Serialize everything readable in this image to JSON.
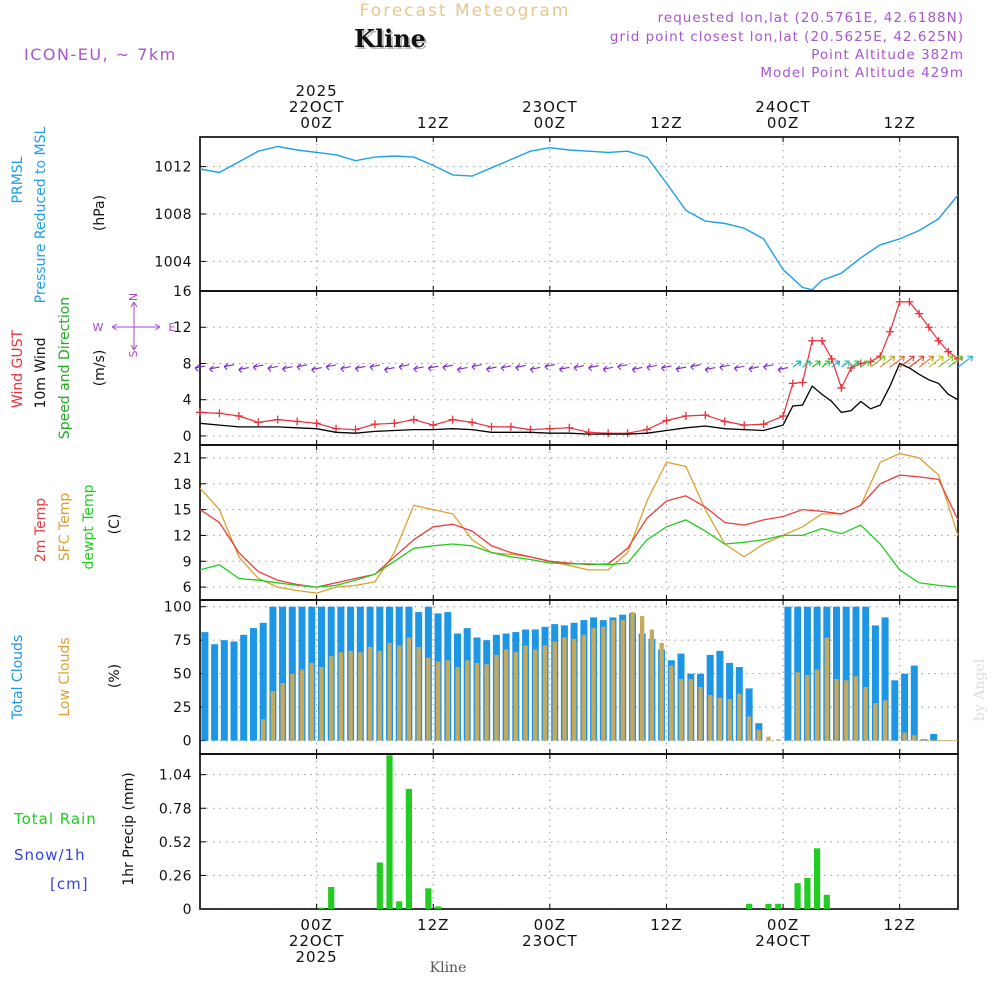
{
  "header": {
    "title": "Forecast Meteogram",
    "location": "Kline",
    "model": "ICON-EU, ~ 7km",
    "requested": "requested lon,lat (20.5761E, 42.6188N)",
    "grid": "grid point closest lon,lat (20.5625E, 42.625N)",
    "point_altitude": "Point Altitude 382m",
    "model_altitude": "Model Point Altitude 429m",
    "credit": "by Angel",
    "footer_location": "Kline"
  },
  "colors": {
    "pressure": "#1ea0e6",
    "gust": "#e8303a",
    "wind": "#000000",
    "wind_dir": "#22aa22",
    "compass": "#aa44cc",
    "temp2m": "#e84040",
    "sfc": "#dca030",
    "dewpt": "#22cc22",
    "clouds_total": "#1e96e6",
    "clouds_low": "#c8a85a",
    "rain": "#22cc22",
    "snow": "#3344dd",
    "header_purple": "#a855d0",
    "title_gold": "#e6c88c"
  },
  "time_axis": {
    "hours": 78,
    "top_labels": [
      {
        "hour": 12,
        "lines": [
          "2025",
          "22OCT",
          "00Z"
        ]
      },
      {
        "hour": 24,
        "lines": [
          "12Z"
        ]
      },
      {
        "hour": 36,
        "lines": [
          "23OCT",
          "00Z"
        ]
      },
      {
        "hour": 48,
        "lines": [
          "12Z"
        ]
      },
      {
        "hour": 60,
        "lines": [
          "24OCT",
          "00Z"
        ]
      },
      {
        "hour": 72,
        "lines": [
          "12Z"
        ]
      }
    ],
    "bottom_labels": [
      {
        "hour": 12,
        "lines": [
          "00Z",
          "22OCT",
          "2025"
        ]
      },
      {
        "hour": 24,
        "lines": [
          "12Z"
        ]
      },
      {
        "hour": 36,
        "lines": [
          "00Z",
          "23OCT"
        ]
      },
      {
        "hour": 48,
        "lines": [
          "12Z"
        ]
      },
      {
        "hour": 60,
        "lines": [
          "00Z",
          "24OCT"
        ]
      },
      {
        "hour": 72,
        "lines": [
          "12Z"
        ]
      }
    ]
  },
  "panels": {
    "pressure": {
      "labels": [
        "PRMSL",
        "Pressure Reduced to MSL"
      ],
      "unit": "(hPa)"
    },
    "wind": {
      "labels": [
        "Wind GUST",
        "10m Wind",
        "Speed and Direction"
      ],
      "unit": "(m/s)",
      "compass": {
        "n": "N",
        "s": "S",
        "e": "E",
        "w": "W"
      }
    },
    "temp": {
      "labels": [
        "2m Temp",
        "SFC Temp",
        "dewpt Temp"
      ],
      "unit": "(C)"
    },
    "clouds": {
      "labels": [
        "Total Clouds",
        "Low Clouds"
      ],
      "unit": "(%)"
    },
    "precip": {
      "labels": [
        "Total  Rain",
        "Snow/1h",
        "[cm]"
      ],
      "unit": "1hr Precip (mm)"
    }
  },
  "chart_data": [
    {
      "type": "line",
      "name": "pressure",
      "title": "PRMSL Pressure Reduced to MSL",
      "ylabel": "(hPa)",
      "ylim": [
        1001.5,
        1014.5
      ],
      "yticks": [
        1004,
        1008,
        1012
      ],
      "x": [
        0,
        2,
        4,
        6,
        8,
        10,
        12,
        14,
        16,
        18,
        20,
        22,
        24,
        26,
        28,
        30,
        32,
        34,
        36,
        38,
        40,
        42,
        44,
        46,
        48,
        50,
        52,
        54,
        56,
        58,
        60,
        62,
        63,
        64,
        66,
        68,
        70,
        72,
        74,
        76,
        78
      ],
      "series": [
        {
          "name": "PRMSL",
          "values": [
            1011.8,
            1011.5,
            1012.4,
            1013.3,
            1013.7,
            1013.4,
            1013.2,
            1013.0,
            1012.5,
            1012.8,
            1012.9,
            1012.8,
            1012.1,
            1011.3,
            1011.2,
            1011.9,
            1012.6,
            1013.3,
            1013.6,
            1013.4,
            1013.3,
            1013.2,
            1013.3,
            1012.8,
            1010.6,
            1008.3,
            1007.4,
            1007.2,
            1006.8,
            1005.9,
            1003.3,
            1001.8,
            1001.6,
            1002.4,
            1003.0,
            1004.3,
            1005.4,
            1005.9,
            1006.6,
            1007.6,
            1009.6
          ]
        }
      ]
    },
    {
      "type": "line",
      "name": "wind",
      "title": "Wind GUST / 10m Wind Speed and Direction",
      "ylabel": "(m/s)",
      "ylim": [
        -1,
        16
      ],
      "yticks": [
        0,
        4,
        8,
        12,
        16
      ],
      "x": [
        0,
        2,
        4,
        6,
        8,
        10,
        12,
        14,
        16,
        18,
        20,
        22,
        24,
        26,
        28,
        30,
        32,
        34,
        36,
        38,
        40,
        42,
        44,
        46,
        48,
        50,
        52,
        54,
        56,
        58,
        60,
        61,
        62,
        63,
        64,
        65,
        66,
        67,
        68,
        69,
        70,
        71,
        72,
        73,
        74,
        75,
        76,
        77,
        78
      ],
      "series": [
        {
          "name": "Wind GUST",
          "values": [
            2.6,
            2.5,
            2.2,
            1.5,
            1.8,
            1.6,
            1.4,
            0.8,
            0.7,
            1.3,
            1.4,
            1.8,
            1.2,
            1.8,
            1.5,
            1.0,
            1.0,
            0.7,
            0.8,
            0.9,
            0.4,
            0.3,
            0.3,
            0.7,
            1.7,
            2.2,
            2.3,
            1.6,
            1.2,
            1.3,
            2.2,
            5.8,
            5.9,
            10.5,
            10.5,
            8.5,
            5.3,
            7.5,
            8.0,
            8.2,
            8.8,
            11.5,
            14.8,
            14.8,
            13.5,
            12.0,
            10.5,
            9.3,
            8.5
          ]
        },
        {
          "name": "10m Wind",
          "values": [
            1.4,
            1.2,
            1.0,
            1.0,
            1.0,
            0.9,
            0.8,
            0.4,
            0.3,
            0.5,
            0.6,
            0.7,
            0.7,
            0.8,
            0.7,
            0.4,
            0.4,
            0.4,
            0.3,
            0.3,
            0.2,
            0.2,
            0.2,
            0.3,
            0.6,
            0.9,
            1.1,
            0.8,
            0.7,
            0.6,
            1.2,
            3.3,
            3.4,
            5.5,
            4.6,
            3.8,
            2.6,
            2.8,
            3.8,
            3.0,
            3.4,
            5.5,
            8.0,
            7.5,
            6.8,
            6.2,
            5.8,
            4.6,
            4.0
          ]
        }
      ]
    },
    {
      "type": "line",
      "name": "temperature",
      "title": "2m Temp / SFC Temp / dewpt Temp",
      "ylabel": "(C)",
      "ylim": [
        4.5,
        22.5
      ],
      "yticks": [
        6,
        9,
        12,
        15,
        18,
        21
      ],
      "x": [
        0,
        2,
        4,
        6,
        8,
        10,
        12,
        14,
        16,
        18,
        20,
        22,
        24,
        26,
        28,
        30,
        32,
        34,
        36,
        38,
        40,
        42,
        44,
        46,
        48,
        50,
        52,
        54,
        56,
        58,
        60,
        62,
        64,
        66,
        68,
        70,
        72,
        74,
        76,
        78
      ],
      "series": [
        {
          "name": "2m Temp",
          "values": [
            15.0,
            13.5,
            10.0,
            7.8,
            6.8,
            6.3,
            6.0,
            6.5,
            7.0,
            7.5,
            9.5,
            11.5,
            13.0,
            13.3,
            12.5,
            10.8,
            10.0,
            9.5,
            9.0,
            8.8,
            8.6,
            8.7,
            10.5,
            14.0,
            16.0,
            16.6,
            15.3,
            13.5,
            13.2,
            13.8,
            14.2,
            15.0,
            14.8,
            14.5,
            15.5,
            18.0,
            19.0,
            18.8,
            18.5,
            13.8
          ]
        },
        {
          "name": "SFC Temp",
          "values": [
            17.5,
            15.0,
            9.5,
            7.0,
            6.0,
            5.6,
            5.3,
            6.0,
            6.2,
            6.6,
            10.0,
            15.5,
            15.0,
            14.5,
            11.5,
            10.0,
            9.8,
            9.5,
            9.0,
            8.5,
            8.0,
            8.0,
            10.0,
            16.0,
            20.5,
            20.0,
            15.0,
            11.0,
            9.5,
            11.0,
            12.0,
            13.0,
            14.5,
            14.5,
            15.5,
            20.5,
            21.5,
            21.0,
            19.0,
            12.0
          ]
        },
        {
          "name": "dewpt Temp",
          "values": [
            8.0,
            8.6,
            7.0,
            6.8,
            6.5,
            6.2,
            6.0,
            6.2,
            6.8,
            7.5,
            9.0,
            10.5,
            10.8,
            11.0,
            10.8,
            10.0,
            9.5,
            9.2,
            8.8,
            8.7,
            8.7,
            8.6,
            8.8,
            11.5,
            13.0,
            13.8,
            12.5,
            11.0,
            11.2,
            11.5,
            12.0,
            12.0,
            12.8,
            12.2,
            13.2,
            11.0,
            8.0,
            6.5,
            6.2,
            6.0
          ]
        }
      ]
    },
    {
      "type": "bar",
      "name": "clouds",
      "title": "Total Clouds / Low Clouds",
      "ylabel": "(%)",
      "ylim": [
        -10,
        105
      ],
      "yticks": [
        0,
        25,
        50,
        75,
        100
      ],
      "x": [
        0,
        1,
        2,
        3,
        4,
        5,
        6,
        7,
        8,
        9,
        10,
        11,
        12,
        13,
        14,
        15,
        16,
        17,
        18,
        19,
        20,
        21,
        22,
        23,
        24,
        25,
        26,
        27,
        28,
        29,
        30,
        31,
        32,
        33,
        34,
        35,
        36,
        37,
        38,
        39,
        40,
        41,
        42,
        43,
        44,
        45,
        46,
        47,
        48,
        49,
        50,
        51,
        52,
        53,
        54,
        55,
        56,
        57,
        58,
        59,
        60,
        61,
        62,
        63,
        64,
        65,
        66,
        67,
        68,
        69,
        70,
        71,
        72,
        73,
        74,
        75,
        76,
        77
      ],
      "series": [
        {
          "name": "Total Clouds",
          "values": [
            81,
            72,
            75,
            74,
            79,
            84,
            88,
            100,
            100,
            100,
            100,
            100,
            100,
            100,
            100,
            100,
            100,
            100,
            100,
            100,
            100,
            100,
            96,
            100,
            95,
            96,
            80,
            84,
            77,
            75,
            79,
            80,
            81,
            83,
            83,
            85,
            87,
            86,
            88,
            90,
            92,
            90,
            92,
            94,
            95,
            80,
            76,
            68,
            60,
            65,
            50,
            50,
            64,
            67,
            58,
            55,
            39,
            13,
            0,
            0,
            100,
            100,
            100,
            100,
            100,
            100,
            100,
            100,
            100,
            86,
            92,
            45,
            50,
            56,
            1,
            5,
            0,
            0
          ]
        },
        {
          "name": "Low Clouds",
          "values": [
            0,
            0,
            0,
            0,
            0,
            0,
            16,
            37,
            43,
            50,
            53,
            58,
            55,
            63,
            66,
            67,
            66,
            70,
            67,
            73,
            71,
            77,
            70,
            62,
            59,
            60,
            55,
            60,
            58,
            57,
            64,
            68,
            66,
            71,
            68,
            71,
            74,
            77,
            76,
            79,
            84,
            85,
            90,
            90,
            96,
            93,
            83,
            73,
            56,
            46,
            46,
            40,
            34,
            32,
            31,
            35,
            18,
            8,
            3,
            1,
            0,
            51,
            49,
            53,
            77,
            46,
            45,
            48,
            40,
            28,
            30,
            0,
            6,
            4,
            0,
            0,
            0,
            0
          ]
        }
      ]
    },
    {
      "type": "bar",
      "name": "precipitation",
      "title": "1hr Precip",
      "ylabel": "1hr Precip (mm)",
      "ylim": [
        0,
        1.2
      ],
      "yticks": [
        0,
        0.26,
        0.52,
        0.78,
        1.04
      ],
      "x": [
        12,
        13,
        18,
        19,
        20,
        21,
        23,
        24,
        56,
        58,
        59,
        61,
        62,
        63,
        64
      ],
      "series": [
        {
          "name": "Total Rain",
          "values": [
            0.01,
            0.17,
            0.36,
            1.19,
            0.06,
            0.93,
            0.16,
            0.02,
            0.04,
            0.04,
            0.04,
            0.2,
            0.24,
            0.47,
            0.11
          ]
        }
      ]
    }
  ]
}
